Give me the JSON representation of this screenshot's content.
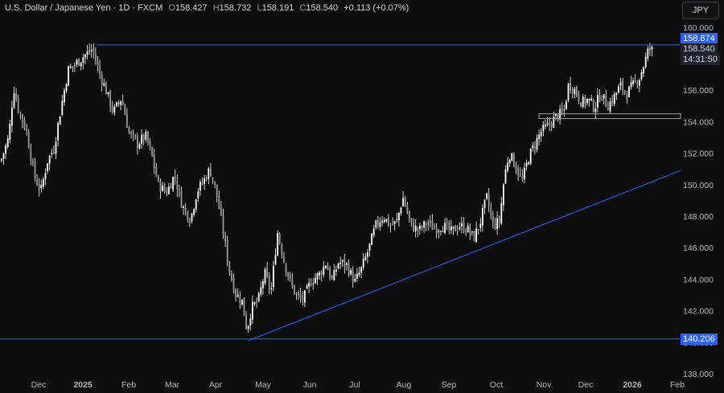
{
  "legend": {
    "symbol": "U.S. Dollar / Japanese Yen · 1D · FXCM",
    "o_label": "O",
    "open": "158.427",
    "h_label": "H",
    "high": "158.732",
    "l_label": "L",
    "low": "158.191",
    "c_label": "C",
    "close": "158.540",
    "change": "+0.113 (+0.07%)"
  },
  "currency_button": "JPY",
  "price_tags": {
    "resistance": "158.874",
    "last_price": "158.540",
    "countdown": "14:31:50",
    "support": "140.206"
  },
  "colors": {
    "background": "#0e0e0e",
    "candles": "#ffffff",
    "trendline": "#2962ff",
    "axis_text": "#b2b5be",
    "range_box": "#a0a0a0"
  },
  "chart_data": {
    "type": "candlestick",
    "title": "U.S. Dollar / Japanese Yen · 1D · FXCM",
    "xlabel": "",
    "ylabel": "",
    "ylim": [
      138.0,
      161.0
    ],
    "grid": false,
    "y_ticks": [
      "160.000",
      "158.000",
      "156.000",
      "154.000",
      "152.000",
      "150.000",
      "148.000",
      "146.000",
      "144.000",
      "142.000",
      "140.000",
      "138.000"
    ],
    "x_ticks": [
      "Dec",
      "2025",
      "Feb",
      "Mar",
      "Apr",
      "May",
      "Jun",
      "Jul",
      "Aug",
      "Sep",
      "Oct",
      "Nov",
      "Dec",
      "2026",
      "Feb"
    ],
    "approx_close_path": [
      {
        "date": "Nov-2024",
        "close": 151.5
      },
      {
        "date": "Dec-2024",
        "close": 150.0
      },
      {
        "date": "Jan-2025",
        "close": 158.0
      },
      {
        "date": "Feb-2025",
        "close": 152.0
      },
      {
        "date": "Mar-2025",
        "close": 149.5
      },
      {
        "date": "Apr-2025",
        "close": 140.2
      },
      {
        "date": "May-2025",
        "close": 146.0
      },
      {
        "date": "Jun-2025",
        "close": 143.5
      },
      {
        "date": "Jul-2025",
        "close": 147.5
      },
      {
        "date": "Aug-2025",
        "close": 147.0
      },
      {
        "date": "Sep-2025",
        "close": 146.5
      },
      {
        "date": "Oct-2025",
        "close": 152.0
      },
      {
        "date": "Nov-2025",
        "close": 156.5
      },
      {
        "date": "Dec-2025",
        "close": 156.0
      },
      {
        "date": "Jan-2026",
        "close": 158.54
      }
    ],
    "horizontal_levels": [
      158.874,
      140.206
    ],
    "range_box": {
      "top": 154.5,
      "bottom": 154.2
    },
    "trendline": {
      "from": {
        "date": "Apr-2025",
        "value": 140.1
      },
      "to": {
        "date": "Jan-2026",
        "value": 150.9
      }
    }
  }
}
